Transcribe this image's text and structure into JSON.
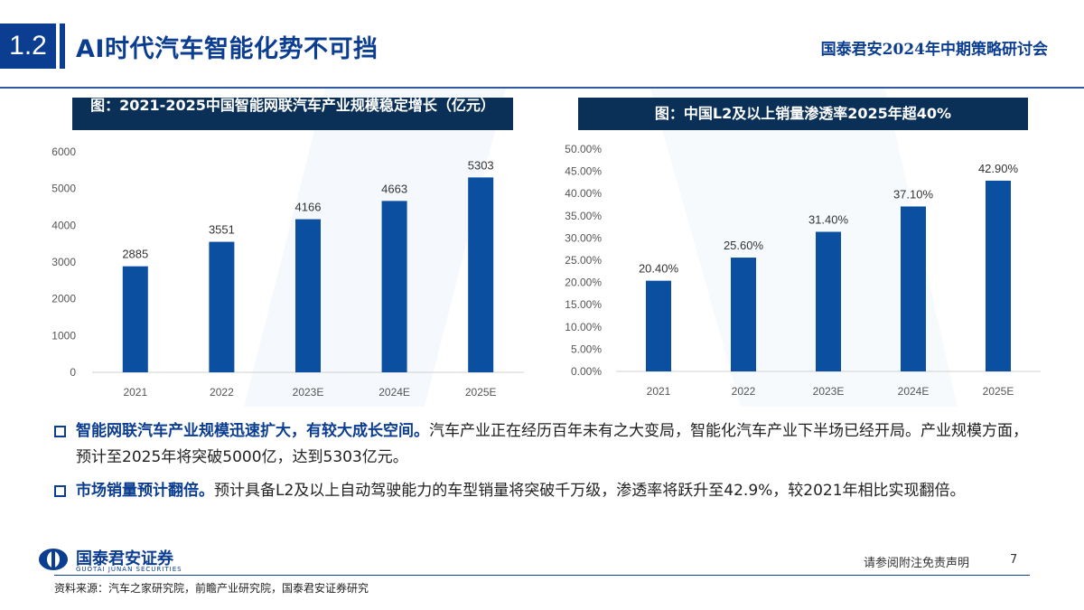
{
  "header": {
    "section_no": "1.2",
    "title": "AI时代汽车智能化势不可挡",
    "event": "国泰君安2024年中期策略研讨会"
  },
  "charts": [
    {
      "header": "图：2021-2025中国智能网联汽车产业规模稳定增长（亿元）",
      "chart_data": {
        "type": "bar",
        "title": "图：2021-2025中国智能网联汽车产业规模稳定增长（亿元）",
        "categories": [
          "2021",
          "2022",
          "2023E",
          "2024E",
          "2025E"
        ],
        "values": [
          2885,
          3551,
          4166,
          4663,
          5303
        ],
        "value_labels": [
          "2885",
          "3551",
          "4166",
          "4663",
          "5303"
        ],
        "y_ticks": [
          "0",
          "1000",
          "2000",
          "3000",
          "4000",
          "5000",
          "6000"
        ],
        "ylim": [
          0,
          6000
        ],
        "xlabel": "",
        "ylabel": "",
        "grid": false,
        "bar_color": "#0b4fa0"
      }
    },
    {
      "header": "图：中国L2及以上销量渗透率2025年超40%",
      "chart_data": {
        "type": "bar",
        "title": "图：中国L2及以上销量渗透率2025年超40%",
        "categories": [
          "2021",
          "2022",
          "2023E",
          "2024E",
          "2025E"
        ],
        "values": [
          20.4,
          25.6,
          31.4,
          37.1,
          42.9
        ],
        "value_labels": [
          "20.40%",
          "25.60%",
          "31.40%",
          "37.10%",
          "42.90%"
        ],
        "y_ticks": [
          "0.00%",
          "5.00%",
          "10.00%",
          "15.00%",
          "20.00%",
          "25.00%",
          "30.00%",
          "35.00%",
          "40.00%",
          "45.00%",
          "50.00%"
        ],
        "ylim": [
          0,
          50
        ],
        "xlabel": "",
        "ylabel": "",
        "grid": false,
        "bar_color": "#0b4fa0"
      }
    }
  ],
  "bullets": [
    {
      "head": "智能网联汽车产业规模迅速扩大，有较大成长空间。",
      "body": "汽车产业正在经历百年未有之大变局，智能化汽车产业下半场已经开局。产业规模方面，预计至2025年将突破5000亿，达到5303亿元。"
    },
    {
      "head": "市场销量预计翻倍。",
      "body": "预计具备L2及以上自动驾驶能力的车型销量将突破千万级，渗透率将跃升至42.9%，较2021年相比实现翻倍。"
    }
  ],
  "footer": {
    "logo_name": "国泰君安证券",
    "logo_sub": "GUOTAI JUNAN SECURITIES",
    "disclaimer": "请参阅附注免责声明",
    "page_no": "7",
    "source": "资料来源：汽车之家研究院，前瞻产业研究院，国泰君安证券研究"
  },
  "colors": {
    "brand": "#0b3d91",
    "chart_header": "#0b3058",
    "bar": "#0b4fa0"
  }
}
